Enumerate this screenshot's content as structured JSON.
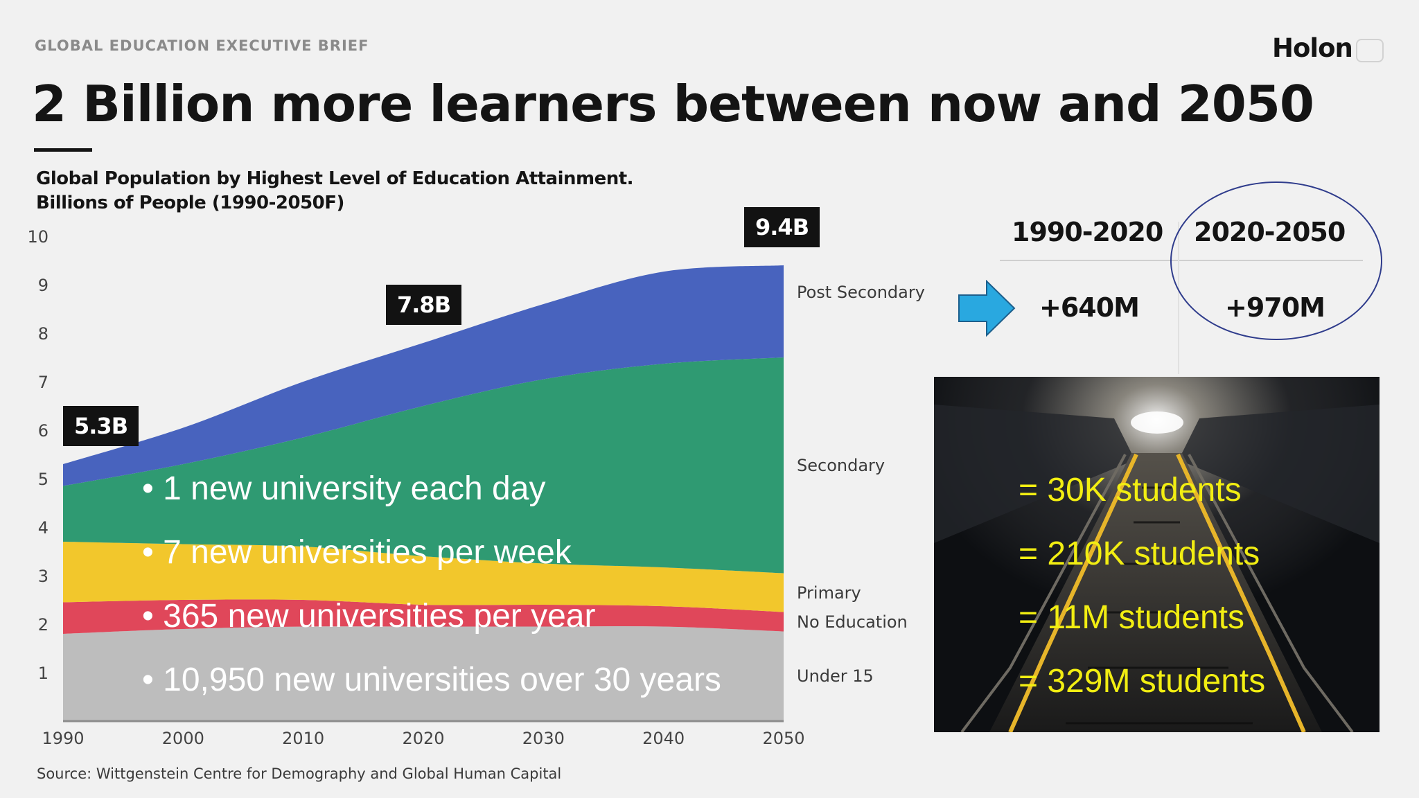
{
  "header": {
    "eyebrow": "GLOBAL EDUCATION EXECUTIVE BRIEF",
    "brand": "Holon",
    "title": "2 Billion more learners between now and 2050"
  },
  "chart_data": {
    "type": "area",
    "stacked": true,
    "title": "Global Population by Highest Level of Education Attainment.",
    "subtitle": "Billions of People (1990-2050F)",
    "x": [
      1990,
      2000,
      2010,
      2020,
      2030,
      2040,
      2050
    ],
    "x_ticks": [
      "1990",
      "2000",
      "2010",
      "2020",
      "2030",
      "2040",
      "2050"
    ],
    "y_ticks": [
      "1",
      "2",
      "3",
      "4",
      "5",
      "6",
      "7",
      "8",
      "9",
      "10"
    ],
    "ylim": [
      0,
      10
    ],
    "grid": false,
    "series": [
      {
        "name": "Under 15",
        "color": "#bdbdbd",
        "values": [
          1.8,
          1.9,
          1.95,
          1.95,
          1.95,
          1.95,
          1.85
        ]
      },
      {
        "name": "No Education",
        "color": "#e0475a",
        "values": [
          0.65,
          0.6,
          0.55,
          0.45,
          0.45,
          0.42,
          0.4
        ]
      },
      {
        "name": "Primary",
        "color": "#f2c72c",
        "values": [
          1.25,
          1.15,
          1.1,
          1.0,
          0.85,
          0.8,
          0.8
        ]
      },
      {
        "name": "Secondary",
        "color": "#2f9a72",
        "values": [
          1.15,
          1.65,
          2.25,
          3.1,
          3.8,
          4.2,
          4.45
        ]
      },
      {
        "name": "Post Secondary",
        "color": "#4863be",
        "values": [
          0.45,
          0.75,
          1.15,
          1.3,
          1.55,
          1.9,
          1.9
        ]
      }
    ],
    "callouts": [
      {
        "x": 1990,
        "label": "5.3B"
      },
      {
        "x": 2020,
        "label": "7.8B"
      },
      {
        "x": 2050,
        "label": "9.4B"
      }
    ],
    "source": "Source: Wittgenstein Centre for Demography and Global Human Capital"
  },
  "growth_table": {
    "headers": [
      "1990-2020",
      "2020-2050"
    ],
    "values": [
      "+640M",
      "+970M"
    ],
    "arrow_color": "#29a8e0"
  },
  "bullets": [
    "1 new university each day",
    "7 new universities per week",
    "365 new universities per year",
    "10,950 new universities over 30 years"
  ],
  "equivalents": [
    "= 30K students",
    "= 210K students",
    "= 11M students",
    "= 329M students"
  ]
}
